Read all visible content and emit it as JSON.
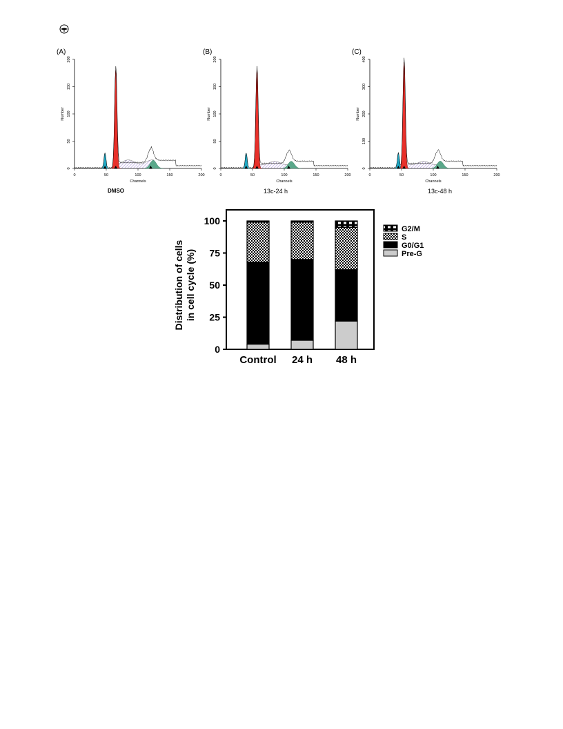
{
  "page": {
    "logo_icon": "publisher-seal-icon"
  },
  "panels": [
    {
      "letter": "(A)",
      "caption": "DMSO",
      "xlabel": "Channels",
      "ylabel": "Number",
      "xticks": [
        "0",
        "50",
        "100",
        "150",
        "200"
      ],
      "yticks": [
        "0",
        "50",
        "100",
        "150",
        "200"
      ],
      "ymax": 200,
      "histogram": {
        "pre_g_center": 48,
        "g1_center": 65,
        "g1_peak": 180,
        "s_level": 12,
        "g2_center": 120,
        "g2_peak": 25
      }
    },
    {
      "letter": "(B)",
      "caption": "13c-24 h",
      "xlabel": "Channels",
      "ylabel": "Number",
      "xticks": [
        "0",
        "50",
        "100",
        "150",
        "200"
      ],
      "yticks": [
        "0",
        "50",
        "100",
        "150",
        "200"
      ],
      "ymax": 200,
      "histogram": {
        "pre_g_center": 40,
        "g1_center": 57,
        "g1_peak": 180,
        "s_level": 10,
        "g2_center": 107,
        "g2_peak": 22
      }
    },
    {
      "letter": "(C)",
      "caption": "13c-48 h",
      "xlabel": "Channels",
      "ylabel": "Number",
      "xticks": [
        "0",
        "50",
        "100",
        "150",
        "200"
      ],
      "yticks": [
        "0",
        "100",
        "200",
        "300",
        "400"
      ],
      "ymax": 400,
      "histogram": {
        "pre_g_center": 45,
        "g1_center": 54,
        "g1_peak": 390,
        "s_level": 20,
        "g2_center": 107,
        "g2_peak": 45
      }
    }
  ],
  "chart_data": {
    "type": "bar",
    "stacked": true,
    "categories": [
      "Control",
      "24 h",
      "48 h"
    ],
    "ylabel": "Distribution of cells in cell cycle (%)",
    "ylabel_lines": [
      "Distribution of cells",
      "in cell cycle (%)"
    ],
    "ylim": [
      0,
      100
    ],
    "yticks": [
      "0",
      "25",
      "50",
      "75",
      "100"
    ],
    "legend_position": "top-right",
    "series": [
      {
        "name": "Pre-G",
        "values": [
          4,
          7,
          22
        ],
        "fill": "#cccccc"
      },
      {
        "name": "G0/G1",
        "values": [
          64,
          63,
          40
        ],
        "fill": "#000000"
      },
      {
        "name": "S",
        "values": [
          31,
          29,
          33
        ],
        "fill": "pattern:checker"
      },
      {
        "name": "G2/M",
        "values": [
          1,
          1,
          5
        ],
        "fill": "pattern:boxes"
      }
    ],
    "legend_order": [
      "G2/M",
      "S",
      "G0/G1",
      "Pre-G"
    ]
  }
}
